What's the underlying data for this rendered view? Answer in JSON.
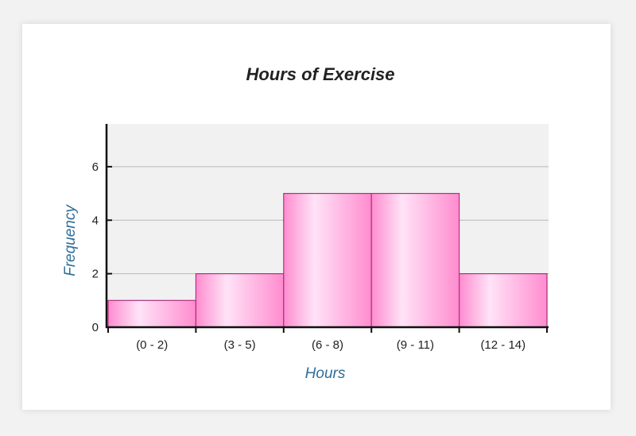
{
  "chart_data": {
    "type": "bar",
    "title": "Hours of Exercise",
    "xlabel": "Hours",
    "ylabel": "Frequency",
    "categories": [
      "(0 - 2)",
      "(3 - 5)",
      "(6 - 8)",
      "(9 - 11)",
      "(12 - 14)"
    ],
    "values": [
      1,
      2,
      5,
      5,
      2
    ],
    "ylim": [
      0,
      7.6
    ],
    "yticks": [
      0,
      2,
      4,
      6
    ],
    "grid": true,
    "bar_style": "histogram"
  },
  "colors": {
    "bar_center": "#ffe3f7",
    "bar_edge": "#ff8ccf",
    "bar_stroke": "#b0307f",
    "plot_bg": "#f1f1f1",
    "grid": "#b8b8b8",
    "axis": "#111111",
    "axis_title": "#2f6f9a"
  }
}
